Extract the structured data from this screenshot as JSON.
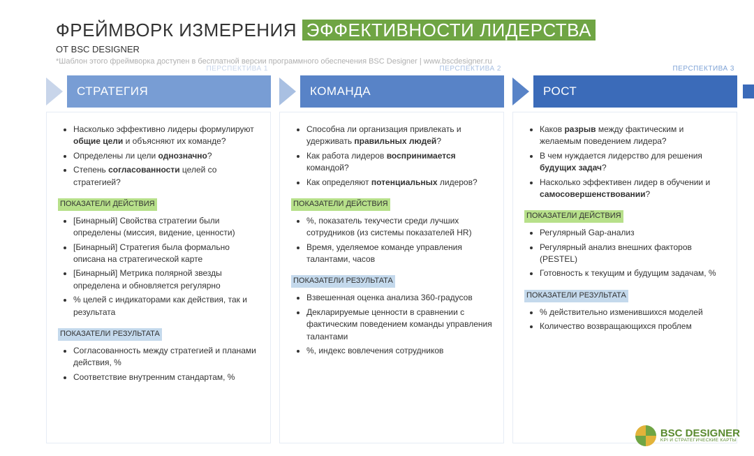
{
  "colors": {
    "accent_green": "#6fa544",
    "section_green": "#b7e08a",
    "section_blue": "#c4d9ec",
    "col1": {
      "label": "#c8d5ea",
      "arrow": "#c8d5ea",
      "bar": "#789dd4"
    },
    "col2": {
      "label": "#a9c0e2",
      "arrow": "#a9c0e2",
      "bar": "#5883c7"
    },
    "col3": {
      "label": "#7fa3d6",
      "arrow": "#5883c7",
      "bar": "#3b6bb9"
    },
    "trailing_arrow": "#3b6bb9",
    "column_border": "#e6ecf5",
    "text": "#333333",
    "note": "#b0b0b0"
  },
  "fonts": {
    "title": 26,
    "subtitle": 13,
    "note": 11,
    "bar": 17,
    "body": 12,
    "section_label": 11,
    "perspective": 10
  },
  "header": {
    "title_plain": "ФРЕЙМВОРК ИЗМЕРЕНИЯ ",
    "title_highlight": "ЭФФЕКТИВНОСТИ ЛИДЕРСТВА",
    "subtitle": "ОТ BSC DESIGNER",
    "note": "*Шаблон этого фреймворка доступен в бесплатной версии программного обеспечения BSC Designer | www.bscdesigner.ru"
  },
  "labels": {
    "action": "ПОКАЗАТЕЛИ ДЕЙСТВИЯ",
    "result": "ПОКАЗАТЕЛИ РЕЗУЛЬТАТА"
  },
  "columns": [
    {
      "perspective": "ПЕРСПЕКТИВА 1",
      "title": "СТРАТЕГИЯ",
      "questions": [
        "Насколько эффективно лидеры формулируют <b>общие цели</b> и объясняют их команде?",
        "Определены ли цели <b>однозначно</b>?",
        "Степень <b>согласованности</b> целей со стратегией?"
      ],
      "action": [
        "[Бинарный] Свойства стратегии были определены (миссия, видение, ценности)",
        "[Бинарный] Стратегия была формально описана на стратегической карте",
        "[Бинарный] Метрика полярной звезды определена и обновляется регулярно",
        "% целей с индикаторами как действия, так и результата"
      ],
      "result": [
        "Согласованность между стратегией и планами действия, %",
        "Соответствие внутренним стандартам, %"
      ]
    },
    {
      "perspective": "ПЕРСПЕКТИВА 2",
      "title": "КОМАНДА",
      "questions": [
        "Способна ли организация привлекать и удерживать <b>правильных людей</b>?",
        "Как работа лидеров <b>воспринимается</b> командой?",
        "Как определяют <b>потенциальных</b> лидеров?"
      ],
      "action": [
        "%, показатель текучести среди лучших сотрудников (из системы показателей HR)",
        "Время, уделяемое команде управления талантами, часов"
      ],
      "result": [
        "Взвешенная оценка анализа 360-градусов",
        "Декларируемые ценности в сравнении с фактическим поведением команды управления талантами",
        "%, индекс вовлечения сотрудников"
      ]
    },
    {
      "perspective": "ПЕРСПЕКТИВА 3",
      "title": "РОСТ",
      "questions": [
        "Каков <b>разрыв</b> между фактическим и желаемым поведением лидера?",
        "В чем нуждается лидерство для решения <b>будущих задач</b>?",
        "Насколько эффективен лидер в обучении и <b>самосовершенствовании</b>?"
      ],
      "action": [
        "Регулярный Gap-анализ",
        "Регулярный анализ внешних факторов (PESTEL)",
        "Готовность к текущим и будущим задачам, %"
      ],
      "result": [
        "% действительно изменившихся моделей",
        "Количество возвращающихся проблем"
      ]
    }
  ],
  "logo": {
    "main": "BSC DESIGNER",
    "sub": "KPI И СТРАТЕГИЧЕСКИЕ КАРТЫ",
    "quad_colors": [
      "#e2b33a",
      "#6fa544",
      "#6fa544",
      "#e2b33a"
    ]
  }
}
